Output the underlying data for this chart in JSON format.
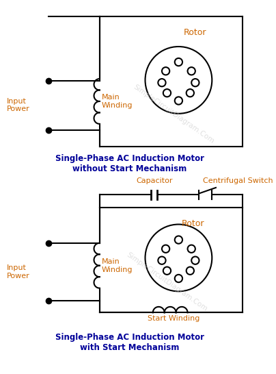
{
  "bg_color": "#ffffff",
  "line_color": "#000000",
  "text_color_blue": "#000099",
  "text_color_orange": "#cc6600",
  "title1": "Single-Phase AC Induction Motor\nwithout Start Mechanism",
  "title2": "Single-Phase AC Induction Motor\nwith Start Mechanism",
  "label_input_power": "Input\nPower",
  "label_main_winding": "Main\nWinding",
  "label_start_winding": "Start Winding",
  "label_rotor1": "Rotor",
  "label_rotor2": "Rotor",
  "label_capacitor": "Capacitor",
  "label_centrifugal": "Centrifugal Switch",
  "watermark": "SimpleCircuitDiagram.Com"
}
